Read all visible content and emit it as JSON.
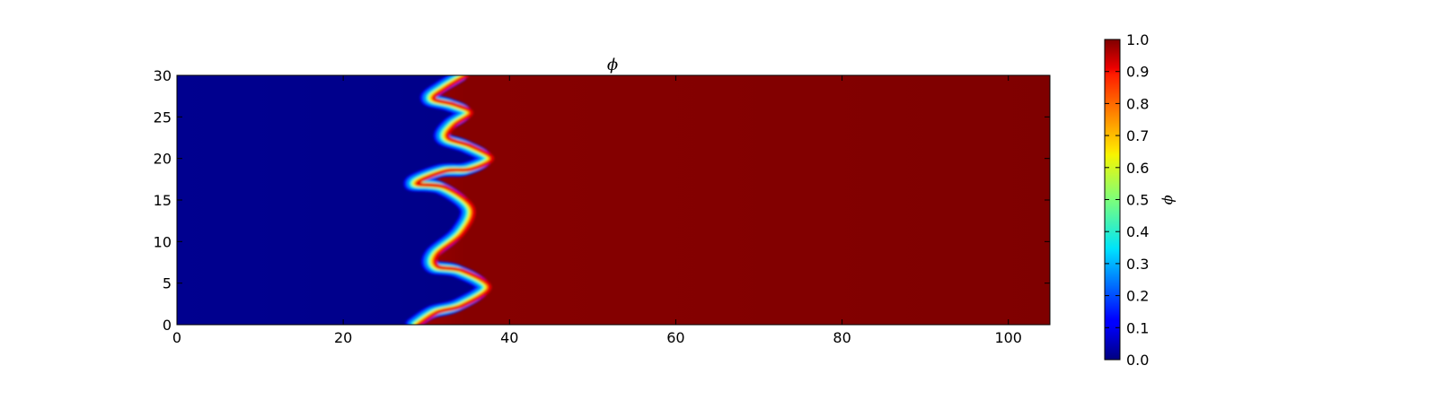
{
  "chart_data": {
    "type": "heatmap",
    "title": "ϕ",
    "xlabel": "",
    "ylabel": "",
    "xlim": [
      0,
      105
    ],
    "ylim": [
      0,
      30
    ],
    "xticks": [
      0,
      20,
      40,
      60,
      80,
      100
    ],
    "yticks": [
      0,
      5,
      10,
      15,
      20,
      25,
      30
    ],
    "x_tick_labels": [
      "0",
      "20",
      "40",
      "60",
      "80",
      "100"
    ],
    "y_tick_labels": [
      "0",
      "5",
      "10",
      "15",
      "20",
      "25",
      "30"
    ],
    "colormap": "jet",
    "colorbar": {
      "label": "ϕ",
      "range": [
        0.0,
        1.0
      ],
      "ticks": [
        0.0,
        0.1,
        0.2,
        0.3,
        0.4,
        0.5,
        0.6,
        0.7,
        0.8,
        0.9,
        1.0
      ],
      "tick_labels": [
        "0.0",
        "0.1",
        "0.2",
        "0.3",
        "0.4",
        "0.5",
        "0.6",
        "0.7",
        "0.8",
        "0.9",
        "1.0"
      ]
    },
    "field_description": {
      "low_value": 0.0,
      "high_value": 1.0,
      "interface_points": [
        {
          "y": 0,
          "x": 28.7
        },
        {
          "y": 1.5,
          "x": 31
        },
        {
          "y": 2.3,
          "x": 34
        },
        {
          "y": 4.5,
          "x": 37.2
        },
        {
          "y": 6.5,
          "x": 34
        },
        {
          "y": 7,
          "x": 31
        },
        {
          "y": 8.5,
          "x": 31
        },
        {
          "y": 11,
          "x": 34
        },
        {
          "y": 14,
          "x": 35.2
        },
        {
          "y": 16.5,
          "x": 32
        },
        {
          "y": 17,
          "x": 28.5
        },
        {
          "y": 18.5,
          "x": 32
        },
        {
          "y": 18.7,
          "x": 35
        },
        {
          "y": 20,
          "x": 37.5
        },
        {
          "y": 21.5,
          "x": 35
        },
        {
          "y": 22.5,
          "x": 32.2
        },
        {
          "y": 24,
          "x": 33
        },
        {
          "y": 25.5,
          "x": 35
        },
        {
          "y": 26.5,
          "x": 33
        },
        {
          "y": 27.2,
          "x": 30.5
        },
        {
          "y": 28.5,
          "x": 32
        },
        {
          "y": 30,
          "x": 34.5
        }
      ]
    }
  }
}
